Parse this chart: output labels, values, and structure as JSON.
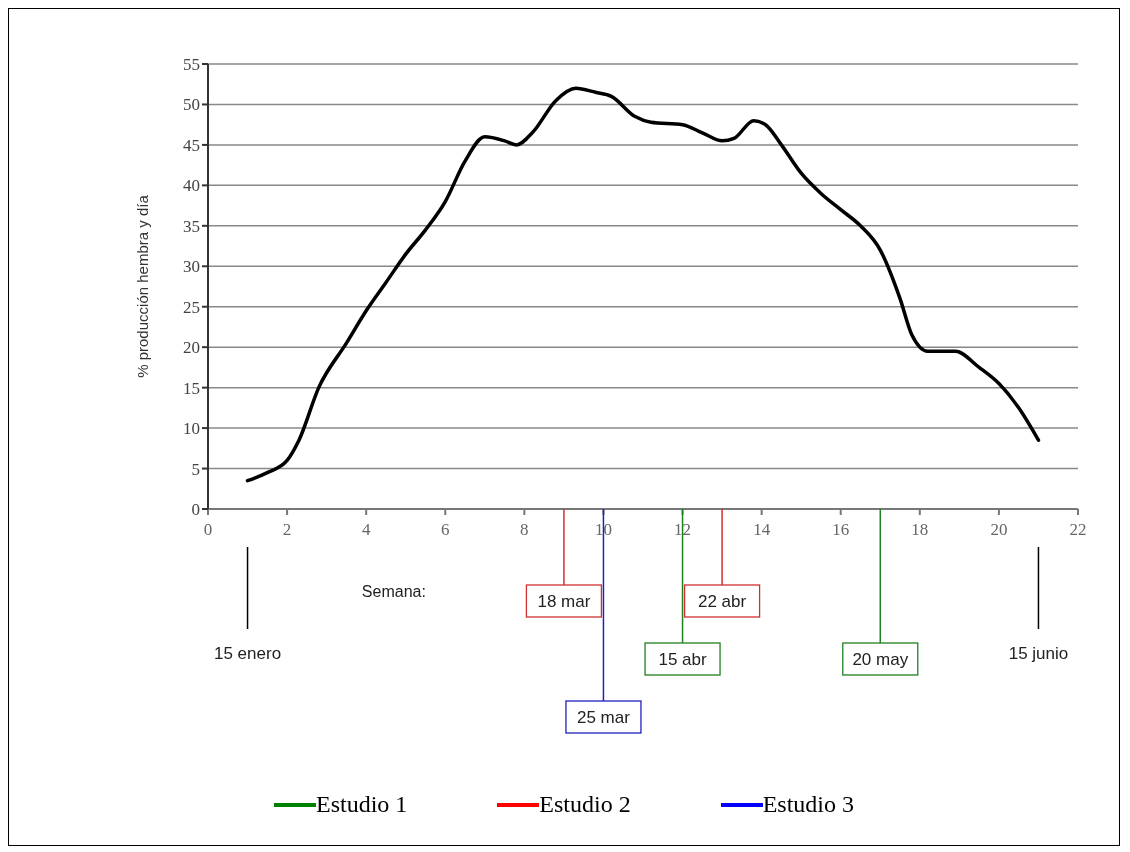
{
  "chart_data": {
    "type": "line",
    "ylabel": "% producción hembra y día",
    "xlabel": "Semana:",
    "xlim": [
      0,
      22
    ],
    "xticks": [
      0,
      2,
      4,
      6,
      8,
      10,
      12,
      14,
      16,
      18,
      20,
      22
    ],
    "ylim": [
      0,
      55
    ],
    "yticks": [
      0,
      5,
      10,
      15,
      20,
      25,
      30,
      35,
      40,
      45,
      50,
      55
    ],
    "grid": "y",
    "legend": "bottom",
    "series": [
      {
        "color": "#000000",
        "x": [
          1,
          1.5,
          2,
          2.3,
          2.8,
          3.5,
          4,
          4.5,
          5,
          5.5,
          6,
          6.5,
          7,
          7.5,
          7.8,
          8.2,
          8.8,
          9.3,
          9.8,
          10.2,
          10.8,
          11.2,
          12,
          12.5,
          13,
          13.3,
          13.8,
          14.1,
          14.5,
          15,
          15.5,
          16,
          16.5,
          17,
          17.5,
          17.8,
          18.2,
          18.9,
          19.5,
          20,
          20.5,
          21
        ],
        "values": [
          3.5,
          4.5,
          6,
          8.5,
          15,
          20.5,
          24.5,
          28,
          31.5,
          34.5,
          38,
          43,
          46,
          45.5,
          45,
          46.5,
          50.5,
          52,
          51.5,
          51,
          48.5,
          47.8,
          47.5,
          46.5,
          45.5,
          45.8,
          48,
          47.5,
          45,
          41.5,
          39,
          37,
          35,
          32,
          26,
          21.5,
          19.5,
          19.5,
          17.5,
          15.5,
          12.5,
          8.5
        ]
      },
      {
        "name": "Estudio 1",
        "color": "#008000"
      },
      {
        "name": "Estudio 2",
        "color": "#ff0000"
      },
      {
        "name": "Estudio 3",
        "color": "#0000ff"
      }
    ],
    "ref_lines": [
      {
        "axis": "x",
        "value": 1,
        "label": "15 enero",
        "color": "#000000"
      },
      {
        "axis": "x",
        "value": 9,
        "label": "18 mar",
        "color": "#d03030"
      },
      {
        "axis": "x",
        "value": 10,
        "label": "25 mar",
        "color": "#2020c0"
      },
      {
        "axis": "x",
        "value": 12,
        "label": "15 abr",
        "color": "#208020"
      },
      {
        "axis": "x",
        "value": 13,
        "label": "22 abr",
        "color": "#d03030"
      },
      {
        "axis": "x",
        "value": 17,
        "label": "20 may",
        "color": "#208020"
      },
      {
        "axis": "x",
        "value": 21,
        "label": "15 junio",
        "color": "#000000"
      }
    ]
  }
}
